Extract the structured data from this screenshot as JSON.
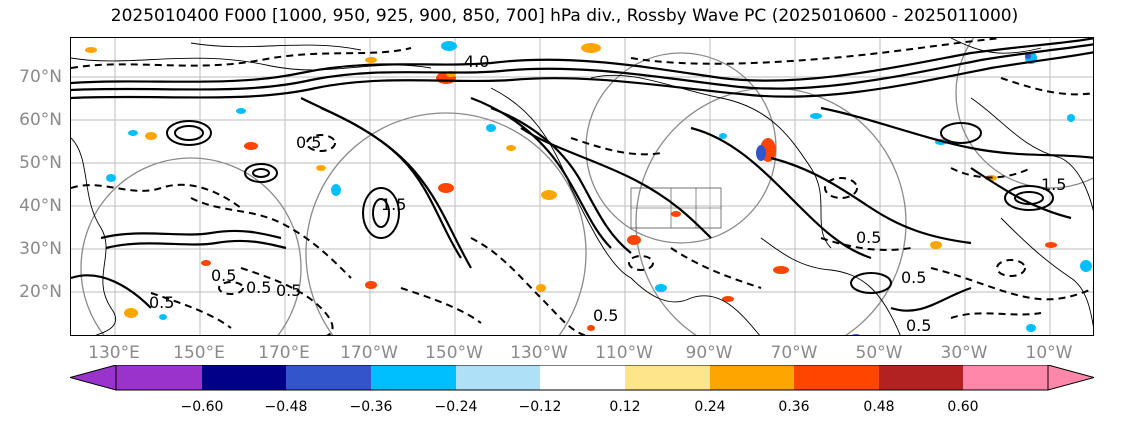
{
  "title": "2025010400 F000 [1000, 950, 925, 900, 850, 700] hPa div., Rossby Wave PC (2025010600 - 2025011000)",
  "lat_labels": [
    "70°N",
    "60°N",
    "50°N",
    "40°N",
    "30°N",
    "20°N"
  ],
  "lon_labels": [
    "130°E",
    "150°E",
    "170°E",
    "170°W",
    "150°W",
    "130°W",
    "110°W",
    "90°W",
    "70°W",
    "50°W",
    "30°W",
    "10°W"
  ],
  "colorbar": {
    "ticks": [
      "−0.60",
      "−0.48",
      "−0.36",
      "−0.24",
      "−0.12",
      "0.12",
      "0.24",
      "0.36",
      "0.48",
      "0.60"
    ],
    "colors": [
      "#9933cc",
      "#000088",
      "#3355cc",
      "#00bfff",
      "#aee0f8",
      "#ffffff",
      "#ffe58a",
      "#ffa500",
      "#ff4500",
      "#b22222",
      "#ff88aa",
      "#ff88aa"
    ]
  },
  "contour_labels": [
    "0.5",
    "0.5",
    "0.5",
    "0.5",
    "0.5",
    "0.5",
    "0.5",
    "0.5",
    "0.5",
    "1.5",
    "1.5",
    "4.0"
  ],
  "colors": {
    "contour": "#000000",
    "grid": "#888888",
    "range_ring": "#8a8a8a"
  }
}
